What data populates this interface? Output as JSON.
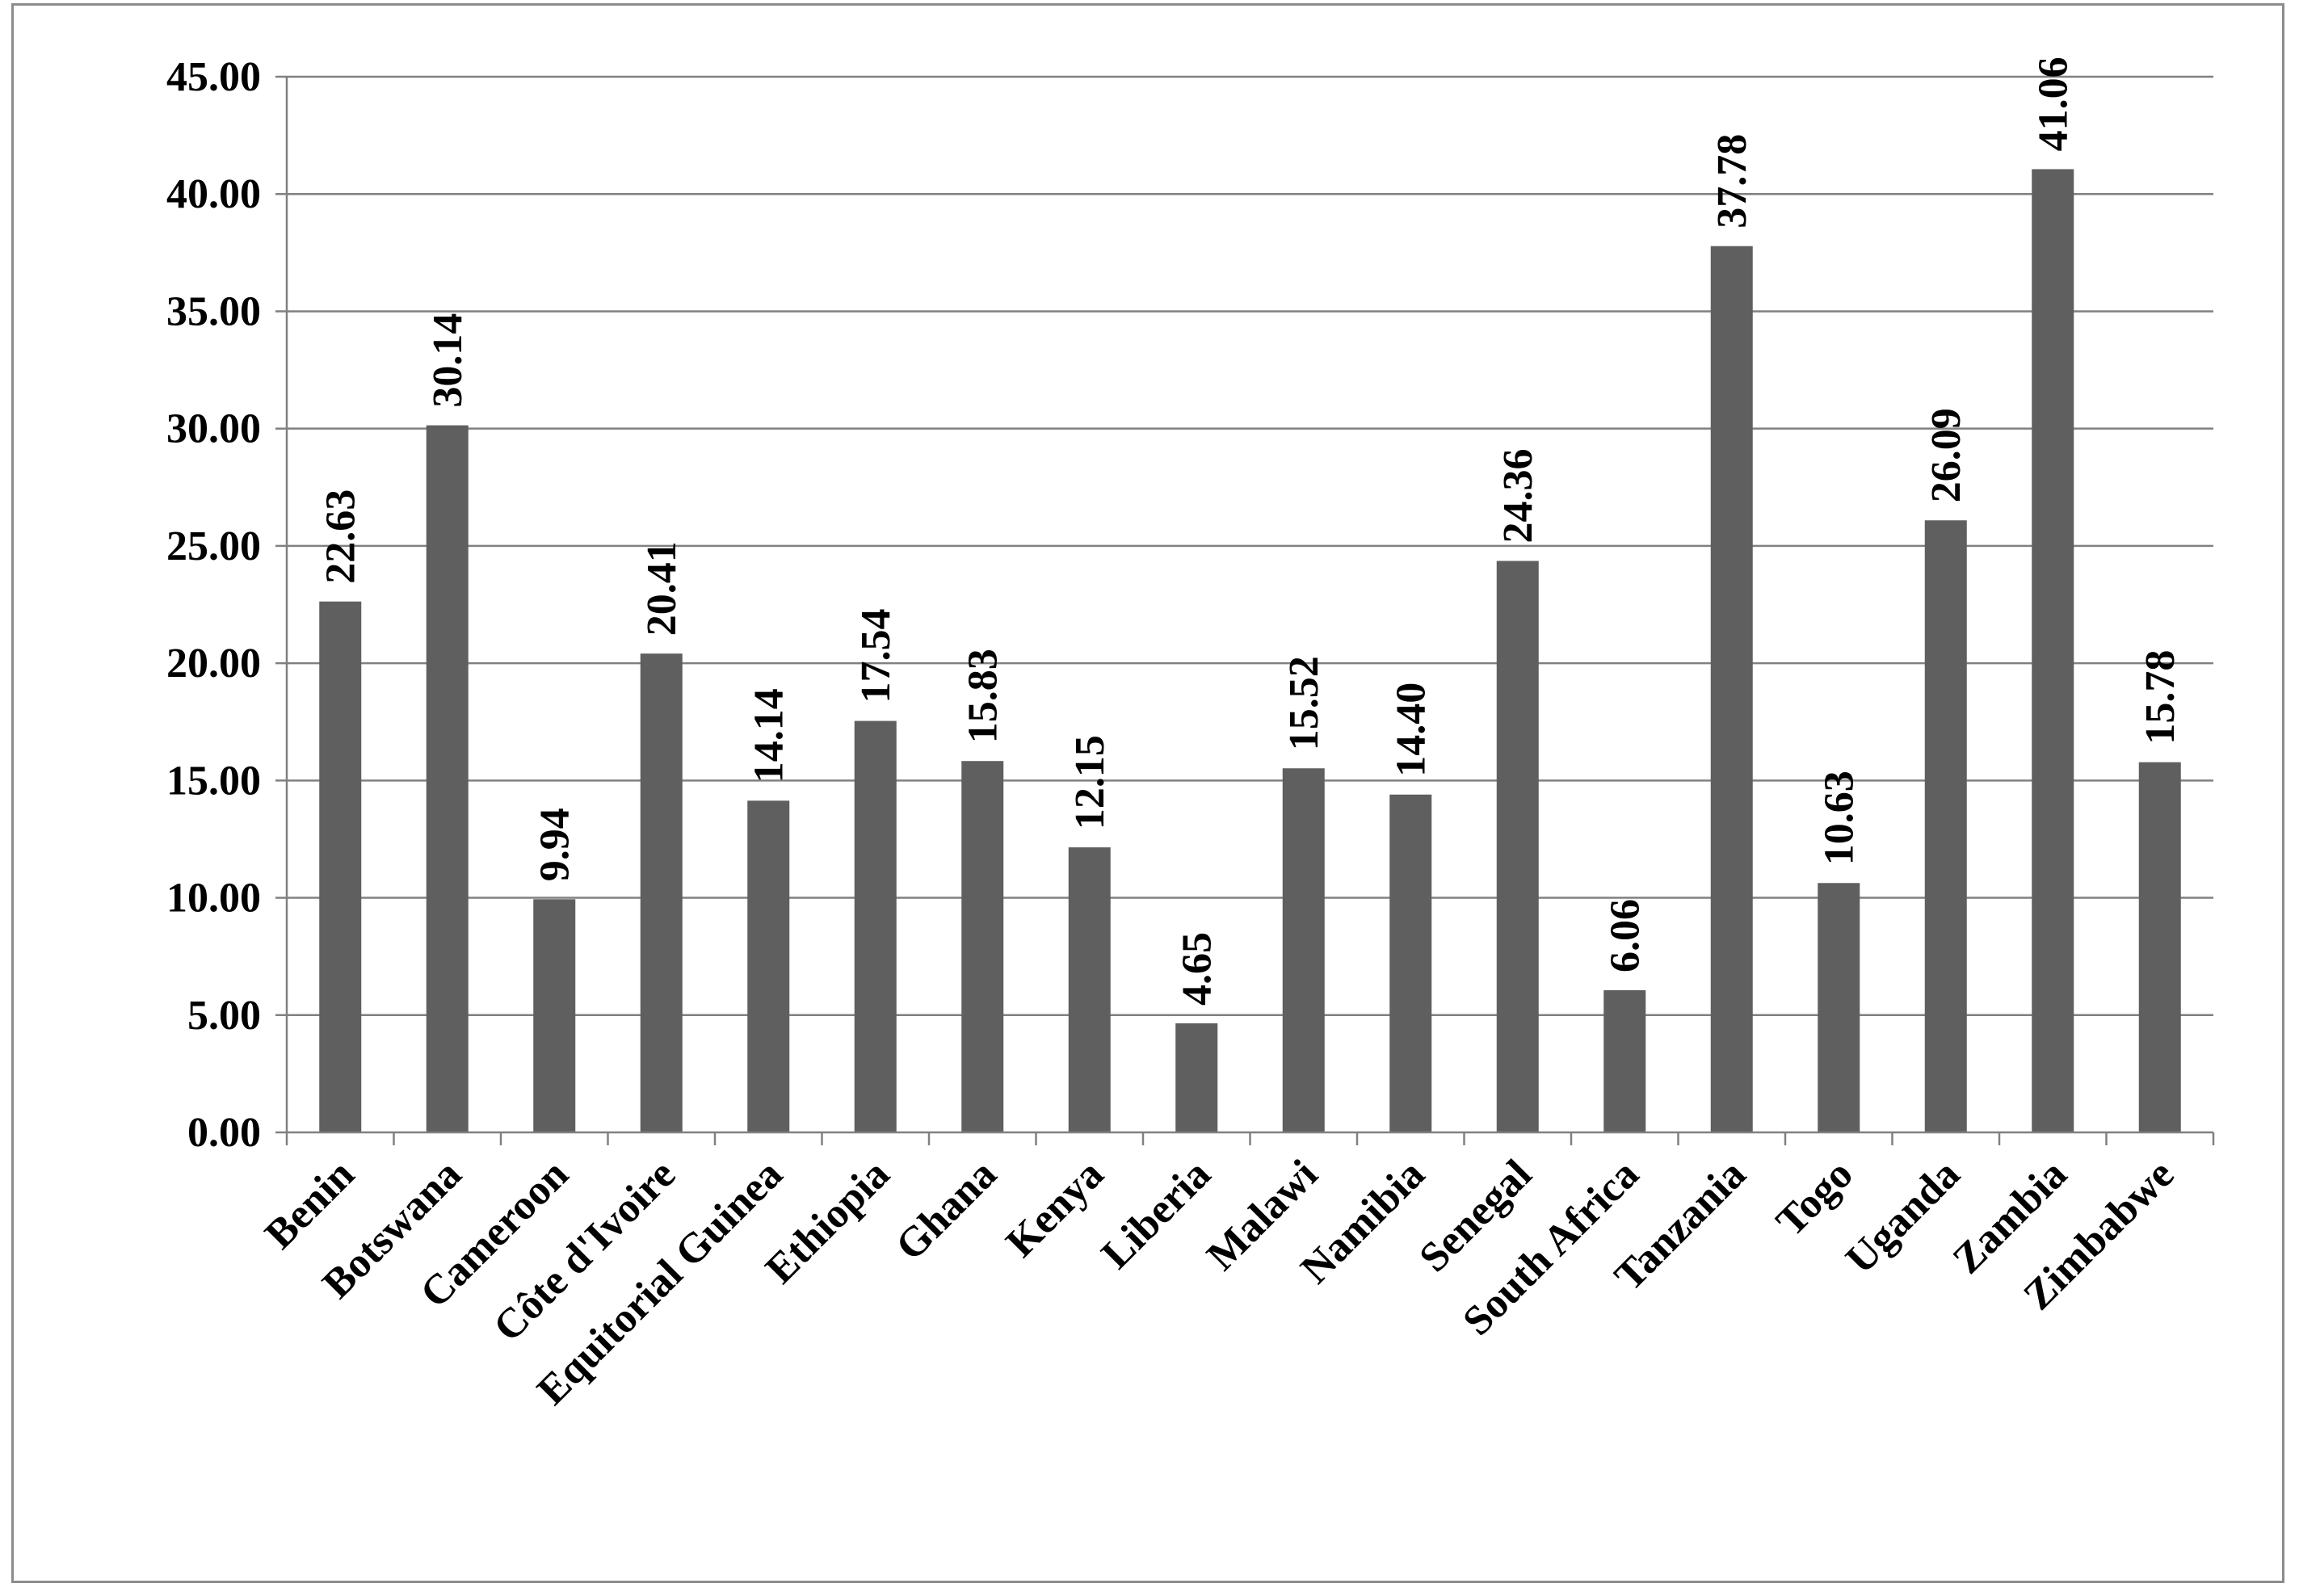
{
  "chart_data": {
    "type": "bar",
    "title": "",
    "xlabel": "",
    "ylabel": "",
    "ylim": [
      0,
      45
    ],
    "y_ticks": [
      "0.00",
      "5.00",
      "10.00",
      "15.00",
      "20.00",
      "25.00",
      "30.00",
      "35.00",
      "40.00",
      "45.00"
    ],
    "grid": true,
    "legend": "none",
    "bar_color": "#5f5f5f",
    "categories": [
      "Benin",
      "Botswana",
      "Cameroon",
      "Côte d'Ivoire",
      "Equitorial Guinea",
      "Ethiopia",
      "Ghana",
      "Kenya",
      "Liberia",
      "Malawi",
      "Namibia",
      "Senegal",
      "South Africa",
      "Tanzania",
      "Togo",
      "Uganda",
      "Zambia",
      "Zimbabwe"
    ],
    "values": [
      22.63,
      30.14,
      9.94,
      20.41,
      14.14,
      17.54,
      15.83,
      12.15,
      4.65,
      15.52,
      14.4,
      24.36,
      6.06,
      37.78,
      10.63,
      26.09,
      41.06,
      15.78
    ],
    "data_labels": [
      "22.63",
      "30.14",
      "9.94",
      "20.41",
      "14.14",
      "17.54",
      "15.83",
      "12.15",
      "4.65",
      "15.52",
      "14.40",
      "24.36",
      "6.06",
      "37.78",
      "10.63",
      "26.09",
      "41.06",
      "15.78"
    ]
  }
}
